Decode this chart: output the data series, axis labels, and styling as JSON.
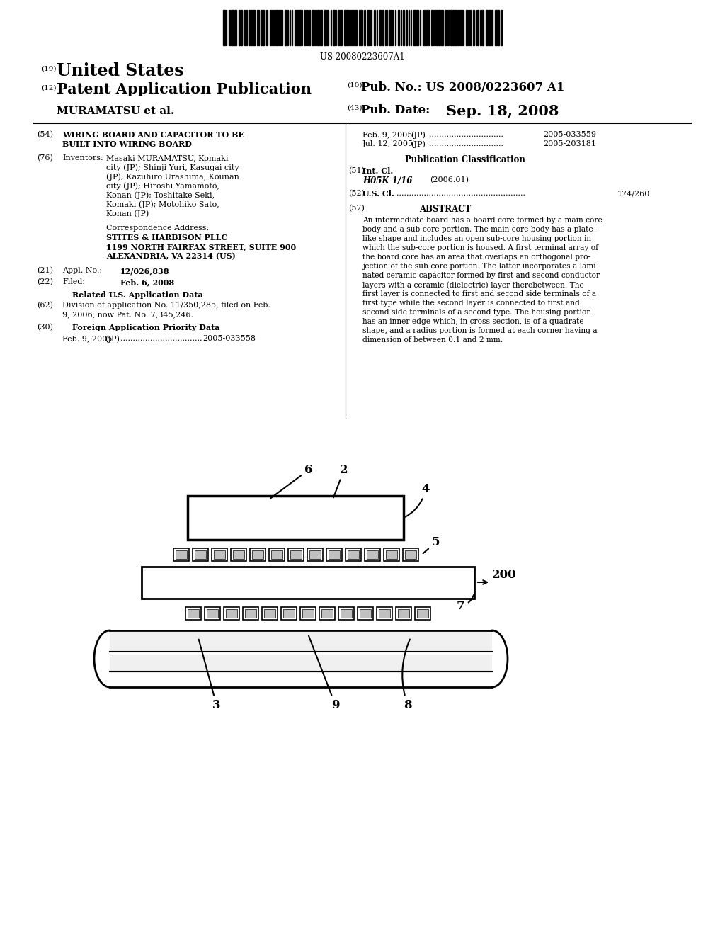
{
  "bg_color": "#ffffff",
  "barcode_text": "US 20080223607A1",
  "title_19": "(19)",
  "title_country": "United States",
  "title_12": "(12)",
  "title_pubtype": "Patent Application Publication",
  "title_10": "(10)",
  "pub_no_label": "Pub. No.:",
  "pub_no": "US 2008/0223607 A1",
  "inventor_name": "MURAMATSU et al.",
  "title_43": "(43)",
  "pub_date_label": "Pub. Date:",
  "pub_date": "Sep. 18, 2008",
  "field_54_num": "(54)",
  "field_54_line1": "WIRING BOARD AND CAPACITOR TO BE",
  "field_54_line2": "BUILT INTO WIRING BOARD",
  "field_76_num": "(76)",
  "field_76_label": "Inventors:",
  "field_76_lines": [
    "Masaki MURAMATSU, Komaki",
    "city (JP); Shinji Yuri, Kasugai city",
    "(JP); Kazuhiro Urashima, Kounan",
    "city (JP); Hiroshi Yamamoto,",
    "Konan (JP); Toshitake Seki,",
    "Komaki (JP); Motohiko Sato,",
    "Konan (JP)"
  ],
  "corr_label": "Correspondence Address:",
  "corr_lines": [
    "STITES & HARBISON PLLC",
    "1199 NORTH FAIRFAX STREET, SUITE 900",
    "ALEXANDRIA, VA 22314 (US)"
  ],
  "field_21_num": "(21)",
  "field_21_label": "Appl. No.:",
  "field_21_value": "12/026,838",
  "field_22_num": "(22)",
  "field_22_label": "Filed:",
  "field_22_value": "Feb. 6, 2008",
  "related_title": "Related U.S. Application Data",
  "field_62_num": "(62)",
  "field_62_lines": [
    "Division of application No. 11/350,285, filed on Feb.",
    "9, 2006, now Pat. No. 7,345,246."
  ],
  "field_30_num": "(30)",
  "field_30_title": "Foreign Application Priority Data",
  "field_30_date": "Feb. 9, 2005",
  "field_30_country": "(JP)",
  "field_30_dots": ".................................",
  "field_30_num_val": "2005-033558",
  "right_date1": "Feb. 9, 2005",
  "right_country1": "(JP)",
  "right_dots1": "..............................",
  "right_num1": "2005-033559",
  "right_date2": "Jul. 12, 2005",
  "right_country2": "(JP)",
  "right_dots2": "..............................",
  "right_num2": "2005-203181",
  "pub_class_title": "Publication Classification",
  "field_51_num": "(51)",
  "field_51_label": "Int. Cl.",
  "field_51_class": "H05K 1/16",
  "field_51_year": "(2006.01)",
  "field_52_num": "(52)",
  "field_52_label": "U.S. Cl.",
  "field_52_dots": "....................................................",
  "field_52_value": "174/260",
  "abstract_num": "(57)",
  "abstract_title": "ABSTRACT",
  "abstract_lines": [
    "An intermediate board has a board core formed by a main core",
    "body and a sub-core portion. The main core body has a plate-",
    "like shape and includes an open sub-core housing portion in",
    "which the sub-core portion is housed. A first terminal array of",
    "the board core has an area that overlaps an orthogonal pro-",
    "jection of the sub-core portion. The latter incorporates a lami-",
    "nated ceramic capacitor formed by first and second conductor",
    "layers with a ceramic (dielectric) layer therebetween. The",
    "first layer is connected to first and second side terminals of a",
    "first type while the second layer is connected to first and",
    "second side terminals of a second type. The housing portion",
    "has an inner edge which, in cross section, is of a quadrate",
    "shape, and a radius portion is formed at each corner having a",
    "dimension of between 0.1 and 2 mm."
  ]
}
